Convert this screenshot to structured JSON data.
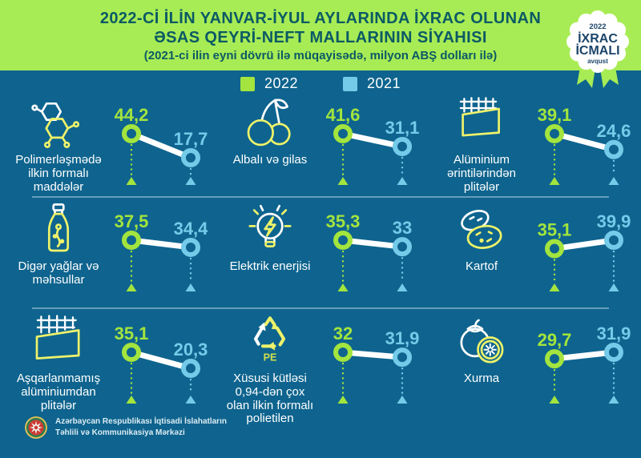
{
  "header": {
    "line1": "2022-Cİ İLİN YANVAR-İYUL AYLARINDA İXRAC OLUNAN",
    "line2": "ƏSAS QEYRİ-NEFT MALLARININ SİYAHISI",
    "line3": "(2021-ci ilin eyni dövrü ilə müqayisədə, milyon ABŞ dolları ilə)"
  },
  "badge": {
    "year": "2022",
    "title_line1": "İXRAC",
    "title_line2": "İCMALI",
    "month": "avqust"
  },
  "legend": [
    {
      "label": "2022",
      "color": "#a3e43e"
    },
    {
      "label": "2021",
      "color": "#74cbe9"
    }
  ],
  "items": [
    {
      "name": "Polimerləşmədə ilkin formalı maddələr",
      "icon": "molecule",
      "value_2022": "44,2",
      "value_2021": "17,7",
      "values": [
        44.2,
        17.7
      ]
    },
    {
      "name": "Albalı və gilas",
      "icon": "cherries",
      "value_2022": "41,6",
      "value_2021": "31,1",
      "values": [
        41.6,
        31.1
      ]
    },
    {
      "name": "Alüminium ərintilərindən plitələr",
      "icon": "alloy-plate",
      "value_2022": "39,1",
      "value_2021": "24,6",
      "values": [
        39.1,
        24.6
      ]
    },
    {
      "name": "Digər yağlar və məhsullar",
      "icon": "oil-bottle",
      "value_2022": "37,5",
      "value_2021": "34,4",
      "values": [
        37.5,
        34.4
      ]
    },
    {
      "name": "Elektrik enerjisi",
      "icon": "light-bulb",
      "value_2022": "35,3",
      "value_2021": "33",
      "values": [
        35.3,
        33
      ]
    },
    {
      "name": "Kartof",
      "icon": "potatoes",
      "value_2022": "35,1",
      "value_2021": "39,9",
      "values": [
        35.1,
        39.9
      ]
    },
    {
      "name": "Aşqarlanmamış alüminiumdan plitələr",
      "icon": "alum-plate",
      "value_2022": "35,1",
      "value_2021": "20,3",
      "values": [
        35.1,
        20.3
      ]
    },
    {
      "name": "Xüsusi kütləsi 0,94-dən çox olan ilkin formalı polietilen",
      "icon": "recycle-pe",
      "icon_text": "PE",
      "value_2022": "32",
      "value_2021": "31,9",
      "values": [
        32,
        31.9
      ]
    },
    {
      "name": "Xurma",
      "icon": "persimmon",
      "value_2022": "29,7",
      "value_2021": "31,9",
      "values": [
        29.7,
        31.9
      ]
    }
  ],
  "footer": {
    "line1": "Azərbaycan Respublikası İqtisadi İslahatların",
    "line2": "Təhlili və Kommunikasiya Mərkəzi"
  },
  "colors": {
    "background": "#0e648e",
    "banner_green": "#a8ec55",
    "title_text": "#0b5a64",
    "value_green": "#a3e43e",
    "value_blue": "#74cbe9",
    "icon_yellow": "#eef26a",
    "badge_navy": "#1c4569",
    "white": "#ffffff"
  },
  "chart_data": {
    "type": "line",
    "title": "2022-Cİ İLİN YANVAR-İYUL AYLARINDA İXRAC OLUNAN ƏSAS QEYRİ-NEFT MALLARININ SİYAHISI",
    "subtitle": "(2021-ci ilin eyni dövrü ilə müqayisədə, milyon ABŞ dolları ilə)",
    "categories": [
      "2022",
      "2021"
    ],
    "legend_position": "top",
    "unit": "milyon ABŞ dolları",
    "series": [
      {
        "name": "Polimerləşmədə ilkin formalı maddələr",
        "values": [
          44.2,
          17.7
        ]
      },
      {
        "name": "Albalı və gilas",
        "values": [
          41.6,
          31.1
        ]
      },
      {
        "name": "Alüminium ərintilərindən plitələr",
        "values": [
          39.1,
          24.6
        ]
      },
      {
        "name": "Digər yağlar və məhsullar",
        "values": [
          37.5,
          34.4
        ]
      },
      {
        "name": "Elektrik enerjisi",
        "values": [
          35.3,
          33
        ]
      },
      {
        "name": "Kartof",
        "values": [
          35.1,
          39.9
        ]
      },
      {
        "name": "Aşqarlanmamış alüminiumdan plitələr",
        "values": [
          35.1,
          20.3
        ]
      },
      {
        "name": "Xüsusi kütləsi 0,94-dən çox olan ilkin formalı polietilen",
        "values": [
          32,
          31.9
        ]
      },
      {
        "name": "Xurma",
        "values": [
          29.7,
          31.9
        ]
      }
    ]
  }
}
